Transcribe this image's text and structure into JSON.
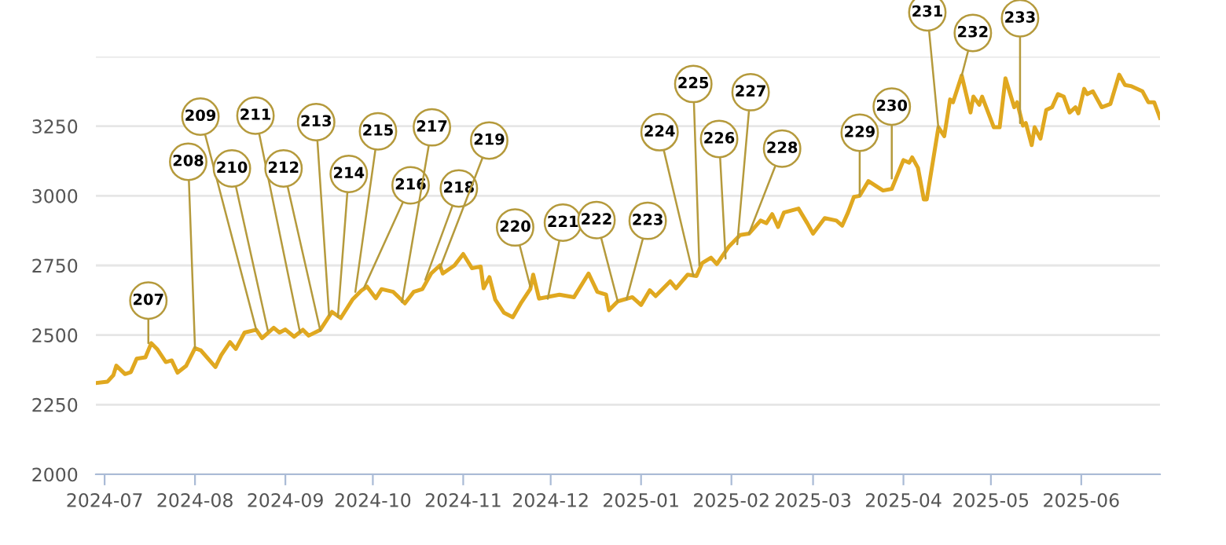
{
  "chart_data": {
    "type": "line",
    "grid": "y",
    "marker": "none",
    "line_style": "solid",
    "xlim": [
      "2024-06-28",
      "2025-06-28"
    ],
    "ylim": [
      2000,
      3500
    ],
    "xticks": [
      "2024-07",
      "2024-08",
      "2024-09",
      "2024-10",
      "2024-11",
      "2024-12",
      "2025-01",
      "2025-02",
      "2025-03",
      "2025-04",
      "2025-05",
      "2025-06"
    ],
    "yticks": [
      2000,
      2250,
      2500,
      2750,
      3000,
      3250,
      {
        "value": 3500,
        "label": null
      }
    ],
    "series": [
      {
        "color": "#e0a820",
        "x": [
          "2024-06-28",
          "2024-07-02",
          "2024-07-04",
          "2024-07-05",
          "2024-07-08",
          "2024-07-10",
          "2024-07-12",
          "2024-07-15",
          "2024-07-17",
          "2024-07-19",
          "2024-07-22",
          "2024-07-24",
          "2024-07-26",
          "2024-07-29",
          "2024-08-01",
          "2024-08-03",
          "2024-08-08",
          "2024-08-10",
          "2024-08-13",
          "2024-08-15",
          "2024-08-18",
          "2024-08-22",
          "2024-08-24",
          "2024-08-28",
          "2024-08-30",
          "2024-09-01",
          "2024-09-04",
          "2024-09-07",
          "2024-09-09",
          "2024-09-13",
          "2024-09-17",
          "2024-09-20",
          "2024-09-24",
          "2024-09-27",
          "2024-09-29",
          "2024-10-02",
          "2024-10-04",
          "2024-10-08",
          "2024-10-12",
          "2024-10-15",
          "2024-10-18",
          "2024-10-21",
          "2024-10-24",
          "2024-10-25",
          "2024-10-29",
          "2024-11-01",
          "2024-11-04",
          "2024-11-07",
          "2024-11-08",
          "2024-11-10",
          "2024-11-12",
          "2024-11-15",
          "2024-11-18",
          "2024-11-21",
          "2024-11-24",
          "2024-11-25",
          "2024-11-27",
          "2024-12-04",
          "2024-12-09",
          "2024-12-14",
          "2024-12-17",
          "2024-12-20",
          "2024-12-21",
          "2024-12-24",
          "2024-12-29",
          "2025-01-01",
          "2025-01-04",
          "2025-01-06",
          "2025-01-11",
          "2025-01-13",
          "2025-01-17",
          "2025-01-20",
          "2025-01-22",
          "2025-01-25",
          "2025-01-27",
          "2025-01-31",
          "2025-02-04",
          "2025-02-07",
          "2025-02-11",
          "2025-02-13",
          "2025-02-15",
          "2025-02-17",
          "2025-02-19",
          "2025-02-24",
          "2025-02-27",
          "2025-03-01",
          "2025-03-05",
          "2025-03-09",
          "2025-03-11",
          "2025-03-13",
          "2025-03-15",
          "2025-03-17",
          "2025-03-20",
          "2025-03-25",
          "2025-03-28",
          "2025-04-01",
          "2025-04-03",
          "2025-04-04",
          "2025-04-06",
          "2025-04-08",
          "2025-04-09",
          "2025-04-13",
          "2025-04-15",
          "2025-04-17",
          "2025-04-18",
          "2025-04-21",
          "2025-04-24",
          "2025-04-25",
          "2025-04-27",
          "2025-04-28",
          "2025-05-02",
          "2025-05-04",
          "2025-05-06",
          "2025-05-09",
          "2025-05-10",
          "2025-05-12",
          "2025-05-13",
          "2025-05-15",
          "2025-05-16",
          "2025-05-18",
          "2025-05-20",
          "2025-05-22",
          "2025-05-24",
          "2025-05-26",
          "2025-05-28",
          "2025-05-30",
          "2025-05-31",
          "2025-06-02",
          "2025-06-03",
          "2025-06-05",
          "2025-06-08",
          "2025-06-11",
          "2025-06-14",
          "2025-06-16",
          "2025-06-18",
          "2025-06-22",
          "2025-06-24",
          "2025-06-26",
          "2025-06-28"
        ],
        "values": [
          2328,
          2333,
          2356,
          2390,
          2360,
          2367,
          2415,
          2420,
          2471,
          2450,
          2403,
          2409,
          2365,
          2390,
          2453,
          2445,
          2385,
          2428,
          2475,
          2450,
          2509,
          2519,
          2489,
          2526,
          2509,
          2520,
          2494,
          2519,
          2498,
          2519,
          2583,
          2561,
          2627,
          2659,
          2674,
          2632,
          2665,
          2655,
          2614,
          2655,
          2665,
          2721,
          2750,
          2721,
          2750,
          2791,
          2740,
          2746,
          2668,
          2708,
          2627,
          2580,
          2564,
          2618,
          2665,
          2717,
          2631,
          2645,
          2636,
          2721,
          2655,
          2645,
          2589,
          2621,
          2636,
          2608,
          2661,
          2640,
          2693,
          2668,
          2717,
          2712,
          2759,
          2778,
          2755,
          2816,
          2859,
          2864,
          2911,
          2902,
          2934,
          2888,
          2940,
          2954,
          2902,
          2864,
          2920,
          2911,
          2893,
          2940,
          2996,
          3000,
          3053,
          3019,
          3025,
          3128,
          3119,
          3138,
          3100,
          2987,
          2987,
          3246,
          3214,
          3346,
          3336,
          3432,
          3299,
          3356,
          3327,
          3356,
          3246,
          3246,
          3422,
          3318,
          3336,
          3252,
          3261,
          3182,
          3246,
          3205,
          3308,
          3318,
          3365,
          3356,
          3299,
          3318,
          3296,
          3384,
          3365,
          3375,
          3318,
          3330,
          3435,
          3398,
          3394,
          3375,
          3336,
          3336,
          3280
        ]
      }
    ],
    "annotations": [
      {
        "text": "207",
        "x": "2024-07-16",
        "y": 2471
      },
      {
        "text": "208",
        "x": "2024-08-01",
        "y": 2453
      },
      {
        "text": "209",
        "x": "2024-08-22",
        "y": 2519
      },
      {
        "text": "210",
        "x": "2024-08-26",
        "y": 2515
      },
      {
        "text": "211",
        "x": "2024-09-06",
        "y": 2510
      },
      {
        "text": "212",
        "x": "2024-09-13",
        "y": 2515
      },
      {
        "text": "213",
        "x": "2024-09-16",
        "y": 2570
      },
      {
        "text": "214",
        "x": "2024-09-19",
        "y": 2565
      },
      {
        "text": "215",
        "x": "2024-09-25",
        "y": 2655
      },
      {
        "text": "216",
        "x": "2024-09-28",
        "y": 2670
      },
      {
        "text": "217",
        "x": "2024-10-11",
        "y": 2618
      },
      {
        "text": "218",
        "x": "2024-10-19",
        "y": 2699
      },
      {
        "text": "219",
        "x": "2024-10-24",
        "y": 2740
      },
      {
        "text": "220",
        "x": "2024-11-24",
        "y": 2674
      },
      {
        "text": "221",
        "x": "2024-11-30",
        "y": 2630
      },
      {
        "text": "222",
        "x": "2024-12-24",
        "y": 2621
      },
      {
        "text": "223",
        "x": "2024-12-27",
        "y": 2627
      },
      {
        "text": "224",
        "x": "2025-01-19",
        "y": 2712
      },
      {
        "text": "225",
        "x": "2025-01-21",
        "y": 2750
      },
      {
        "text": "226",
        "x": "2025-01-30",
        "y": 2775
      },
      {
        "text": "227",
        "x": "2025-02-03",
        "y": 2826
      },
      {
        "text": "228",
        "x": "2025-02-07",
        "y": 2864
      },
      {
        "text": "229",
        "x": "2025-03-17",
        "y": 3000
      },
      {
        "text": "230",
        "x": "2025-03-28",
        "y": 3062
      },
      {
        "text": "231",
        "x": "2025-04-13",
        "y": 3242
      },
      {
        "text": "232",
        "x": "2025-04-21",
        "y": 3432
      },
      {
        "text": "233",
        "x": "2025-05-11",
        "y": 3261
      }
    ]
  }
}
